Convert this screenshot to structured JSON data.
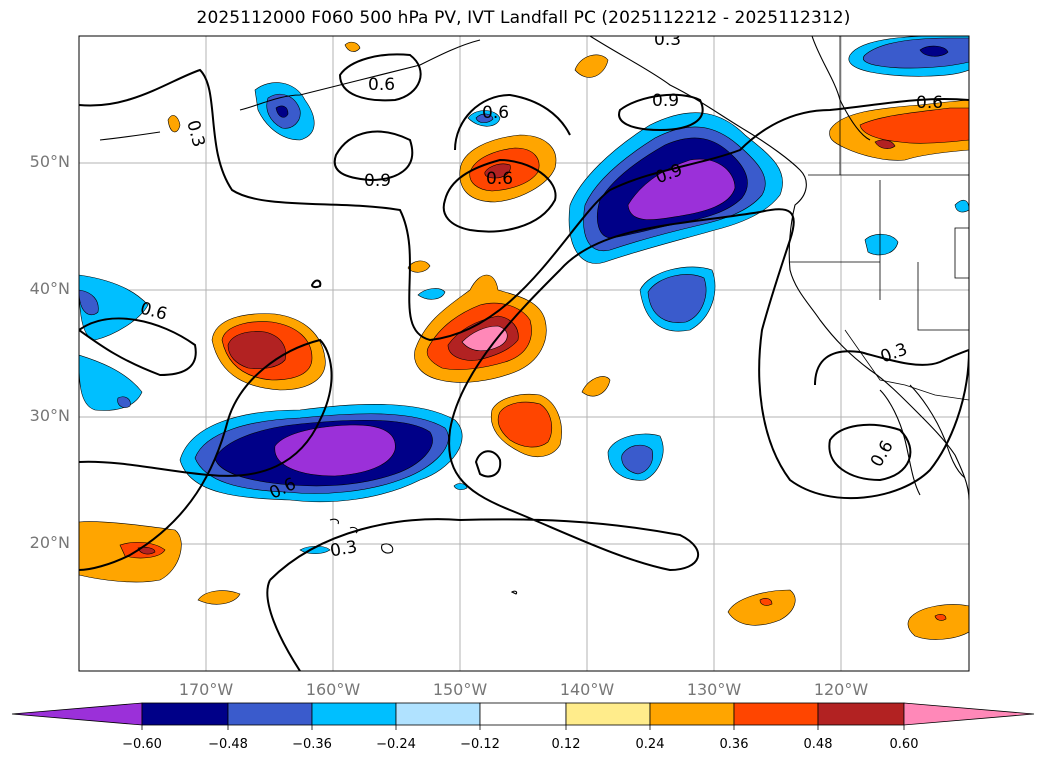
{
  "title": "2025112000 F060 500 hPa PV, IVT Landfall PC (2025112212 - 2025112312)",
  "lat_labels": [
    "50°N",
    "40°N",
    "30°N",
    "20°N"
  ],
  "lon_labels": [
    "170°W",
    "160°W",
    "150°W",
    "140°W",
    "130°W",
    "120°W"
  ],
  "contour_labels": [
    "0.3",
    "0.6",
    "0.3",
    "0.6",
    "0.9",
    "0.9",
    "0.6",
    "0.9",
    "0.6",
    "0.6",
    "0.6",
    "0.3",
    "0.3",
    "0.6",
    "0.9"
  ],
  "colorbar": {
    "tick_labels": [
      "−0.60",
      "−0.48",
      "−0.36",
      "−0.24",
      "−0.12",
      "0.12",
      "0.24",
      "0.36",
      "0.48",
      "0.60"
    ],
    "colors": [
      "#9b30d9",
      "#000088",
      "#3a5bcc",
      "#00bfff",
      "#b0e2ff",
      "#ffffff",
      "#ffec8b",
      "#ffa500",
      "#ff4500",
      "#b22222",
      "#ff88b8"
    ]
  },
  "map": {
    "extent": {
      "lon_min": -180,
      "lon_max": -110,
      "lat_min": 10,
      "lat_max": 60
    },
    "gridlines": true
  }
}
